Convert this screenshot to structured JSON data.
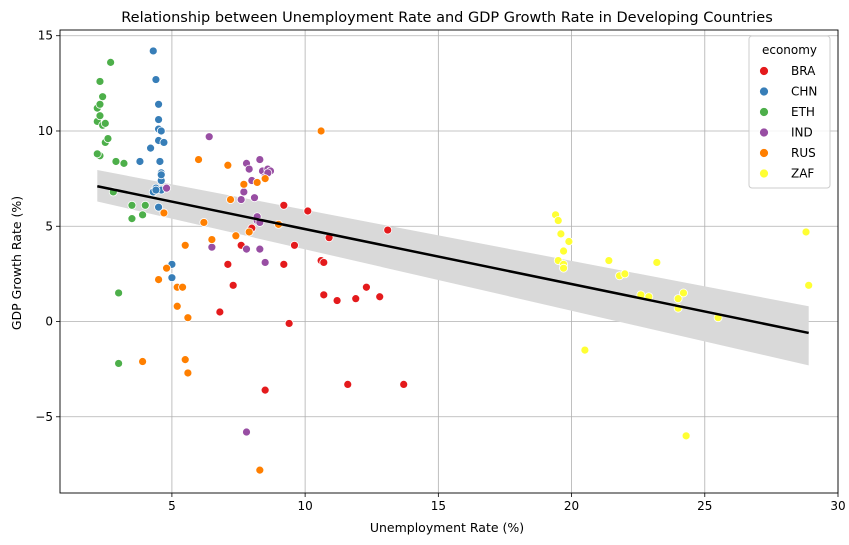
{
  "chart_data": {
    "type": "scatter",
    "title": "Relationship between Unemployment Rate and GDP Growth Rate in Developing Countries",
    "xlabel": "Unemployment Rate (%)",
    "ylabel": "GDP Growth Rate (%)",
    "xlim": [
      0.8,
      30.0
    ],
    "ylim": [
      -9.0,
      15.3
    ],
    "xticks": [
      5,
      10,
      15,
      20,
      25,
      30
    ],
    "yticks": [
      -5,
      0,
      5,
      10,
      15
    ],
    "grid": true,
    "legend": {
      "title": "economy",
      "position": "top-right"
    },
    "regression": {
      "x_start": 2.2,
      "y_start": 7.1,
      "x_end": 28.9,
      "y_end": -0.6,
      "ci_upper_start": 7.95,
      "ci_lower_start": 6.3,
      "ci_upper_end": 0.8,
      "ci_lower_end": -2.3
    },
    "series": [
      {
        "name": "BRA",
        "color": "#e41a1c",
        "points": [
          [
            7.1,
            3.0
          ],
          [
            7.3,
            1.9
          ],
          [
            7.6,
            4.0
          ],
          [
            6.8,
            0.5
          ],
          [
            8.0,
            4.9
          ],
          [
            8.5,
            -3.6
          ],
          [
            9.2,
            3.0
          ],
          [
            9.2,
            6.1
          ],
          [
            9.4,
            -0.1
          ],
          [
            9.6,
            4.0
          ],
          [
            10.1,
            5.8
          ],
          [
            10.6,
            3.2
          ],
          [
            10.7,
            3.1
          ],
          [
            10.7,
            1.4
          ],
          [
            10.9,
            4.4
          ],
          [
            11.2,
            1.1
          ],
          [
            11.6,
            -3.3
          ],
          [
            11.9,
            1.2
          ],
          [
            12.3,
            1.8
          ],
          [
            12.8,
            1.3
          ],
          [
            13.1,
            4.8
          ],
          [
            13.7,
            -3.3
          ]
        ]
      },
      {
        "name": "CHN",
        "color": "#377eb8",
        "points": [
          [
            3.8,
            8.4
          ],
          [
            4.2,
            9.1
          ],
          [
            4.3,
            6.8
          ],
          [
            4.3,
            14.2
          ],
          [
            4.4,
            12.7
          ],
          [
            4.4,
            7.0
          ],
          [
            4.5,
            11.4
          ],
          [
            4.5,
            10.1
          ],
          [
            4.5,
            10.6
          ],
          [
            4.5,
            9.5
          ],
          [
            4.55,
            8.4
          ],
          [
            4.6,
            7.8
          ],
          [
            4.6,
            7.4
          ],
          [
            4.6,
            6.9
          ],
          [
            4.6,
            7.7
          ],
          [
            4.7,
            9.4
          ],
          [
            4.6,
            10.0
          ],
          [
            4.5,
            6.0
          ],
          [
            5.0,
            3.0
          ],
          [
            5.0,
            2.3
          ],
          [
            4.4,
            6.9
          ]
        ]
      },
      {
        "name": "ETH",
        "color": "#4daf4a",
        "points": [
          [
            2.2,
            10.5
          ],
          [
            2.3,
            10.8
          ],
          [
            2.2,
            11.2
          ],
          [
            2.3,
            11.4
          ],
          [
            2.3,
            12.6
          ],
          [
            2.4,
            11.8
          ],
          [
            2.4,
            10.3
          ],
          [
            2.5,
            10.4
          ],
          [
            2.5,
            9.4
          ],
          [
            2.6,
            9.6
          ],
          [
            2.7,
            13.6
          ],
          [
            2.3,
            8.7
          ],
          [
            2.2,
            8.8
          ],
          [
            2.9,
            8.4
          ],
          [
            2.8,
            6.8
          ],
          [
            3.2,
            8.3
          ],
          [
            3.5,
            6.1
          ],
          [
            3.5,
            5.4
          ],
          [
            3.9,
            5.6
          ],
          [
            4.0,
            6.1
          ],
          [
            3.0,
            1.5
          ],
          [
            3.0,
            -2.2
          ]
        ]
      },
      {
        "name": "IND",
        "color": "#984ea3",
        "points": [
          [
            4.8,
            7.0
          ],
          [
            6.4,
            9.7
          ],
          [
            6.5,
            3.9
          ],
          [
            7.6,
            6.4
          ],
          [
            7.7,
            6.8
          ],
          [
            7.8,
            8.3
          ],
          [
            7.9,
            8.0
          ],
          [
            8.0,
            7.4
          ],
          [
            8.1,
            6.5
          ],
          [
            8.2,
            5.3
          ],
          [
            8.3,
            8.5
          ],
          [
            8.4,
            7.9
          ],
          [
            8.5,
            7.6
          ],
          [
            8.6,
            8.0
          ],
          [
            8.7,
            7.9
          ],
          [
            8.6,
            7.8
          ],
          [
            7.8,
            3.8
          ],
          [
            8.3,
            3.8
          ],
          [
            8.5,
            3.1
          ],
          [
            8.2,
            5.5
          ],
          [
            7.8,
            -5.8
          ],
          [
            8.3,
            5.2
          ]
        ]
      },
      {
        "name": "RUS",
        "color": "#ff7f00",
        "points": [
          [
            3.9,
            -2.1
          ],
          [
            4.5,
            2.2
          ],
          [
            4.7,
            5.7
          ],
          [
            4.8,
            2.8
          ],
          [
            5.2,
            1.8
          ],
          [
            5.4,
            1.8
          ],
          [
            5.5,
            -2.0
          ],
          [
            5.6,
            -2.7
          ],
          [
            5.6,
            0.2
          ],
          [
            5.2,
            0.8
          ],
          [
            5.5,
            4.0
          ],
          [
            6.0,
            8.5
          ],
          [
            6.2,
            5.2
          ],
          [
            6.5,
            4.3
          ],
          [
            7.1,
            8.2
          ],
          [
            7.2,
            6.4
          ],
          [
            7.4,
            4.5
          ],
          [
            7.7,
            7.2
          ],
          [
            7.9,
            4.7
          ],
          [
            8.2,
            7.3
          ],
          [
            8.5,
            7.5
          ],
          [
            9.0,
            5.1
          ],
          [
            8.3,
            -7.8
          ],
          [
            10.6,
            10.0
          ]
        ]
      },
      {
        "name": "ZAF",
        "color": "#ffff33",
        "points": [
          [
            19.4,
            5.6
          ],
          [
            19.5,
            5.3
          ],
          [
            19.5,
            3.2
          ],
          [
            19.6,
            4.6
          ],
          [
            19.7,
            3.0
          ],
          [
            19.7,
            2.8
          ],
          [
            19.7,
            3.7
          ],
          [
            19.9,
            4.2
          ],
          [
            20.5,
            -1.5
          ],
          [
            21.4,
            3.2
          ],
          [
            21.8,
            2.4
          ],
          [
            22.0,
            2.5
          ],
          [
            22.6,
            1.4
          ],
          [
            22.9,
            1.3
          ],
          [
            23.2,
            3.1
          ],
          [
            24.0,
            1.2
          ],
          [
            24.0,
            0.7
          ],
          [
            24.2,
            1.5
          ],
          [
            24.3,
            -6.0
          ],
          [
            25.5,
            0.2
          ],
          [
            28.8,
            4.7
          ],
          [
            28.9,
            1.9
          ]
        ]
      }
    ]
  }
}
